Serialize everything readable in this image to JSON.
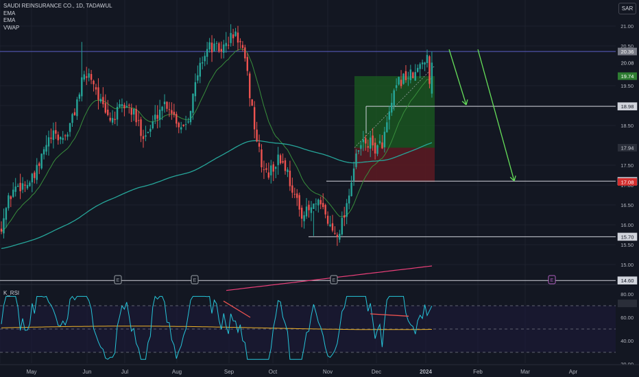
{
  "legend": {
    "title": "SAUDI REINSURANCE CO., 1D, TADAWUL",
    "line1": "EMA",
    "line2": "EMA",
    "line3": "VWAP"
  },
  "currency_button": "SAR",
  "rsi_label": "K_RSI",
  "earnings_marker": "E",
  "colors": {
    "background": "#131722",
    "up": "#26a69a",
    "down": "#ef5350",
    "ema_fast": "#388e3c",
    "ema_slow": "#26a69a",
    "vwap": "#ec407a",
    "rsi": "#26c6da",
    "rsi_ma": "#f0b429",
    "profit_zone": "#1b5e20",
    "loss_zone": "#5d1a22",
    "arrow": "#66e05a"
  },
  "chart_data": [
    {
      "type": "candlestick",
      "title": "SAUDI REINSURANCE CO., 1D, TADAWUL",
      "currency": "SAR",
      "x_ticks": [
        "May",
        "Jun",
        "Jul",
        "Aug",
        "Sep",
        "Oct",
        "Nov",
        "Dec",
        "2024",
        "Feb",
        "Mar",
        "Apr"
      ],
      "y_ticks": [
        "21.00",
        "20.50",
        "19.50",
        "19.00",
        "18.50",
        "17.50",
        "17.00",
        "16.50",
        "16.00",
        "15.50",
        "15.00"
      ],
      "ylim": [
        14.5,
        21.3
      ],
      "price_labels": [
        {
          "value": "20.36",
          "kind": "line"
        },
        {
          "value": "20.08",
          "kind": "plain"
        },
        {
          "value": "19.74",
          "kind": "target"
        },
        {
          "value": "18.98",
          "kind": "line"
        },
        {
          "value": "17.94",
          "kind": "entry"
        },
        {
          "value": "17.10",
          "kind": "line"
        },
        {
          "value": "17.08",
          "kind": "stop"
        },
        {
          "value": "15.70",
          "kind": "line"
        },
        {
          "value": "14.60",
          "kind": "line"
        }
      ],
      "horizontal_levels": [
        20.36,
        18.98,
        17.1,
        15.7,
        14.6
      ],
      "position_tool": {
        "entry": 17.94,
        "target": 19.74,
        "stop": 17.08
      },
      "key_points": [
        {
          "month": "Apr",
          "price": 15.9
        },
        {
          "month": "May",
          "price": 17.2
        },
        {
          "month": "Jun",
          "price": 19.6
        },
        {
          "month": "Jul",
          "price": 18.4
        },
        {
          "month": "Aug",
          "price": 19.0
        },
        {
          "month": "Sep",
          "price": 20.6
        },
        {
          "month": "Oct",
          "price": 17.6
        },
        {
          "month": "Nov",
          "price": 15.75
        },
        {
          "month": "Dec",
          "price": 18.5
        },
        {
          "month": "2024",
          "price": 20.08
        }
      ],
      "series": [
        {
          "name": "EMA",
          "style": "fast"
        },
        {
          "name": "EMA",
          "style": "slow"
        },
        {
          "name": "VWAP",
          "style": "vwap"
        }
      ]
    },
    {
      "type": "line",
      "title": "K_RSI",
      "y_ticks": [
        "80.00",
        "60.00",
        "40.00",
        "20.00"
      ],
      "ylim": [
        18,
        88
      ],
      "levels": [
        70,
        50,
        30
      ],
      "last_value": 72
    }
  ]
}
